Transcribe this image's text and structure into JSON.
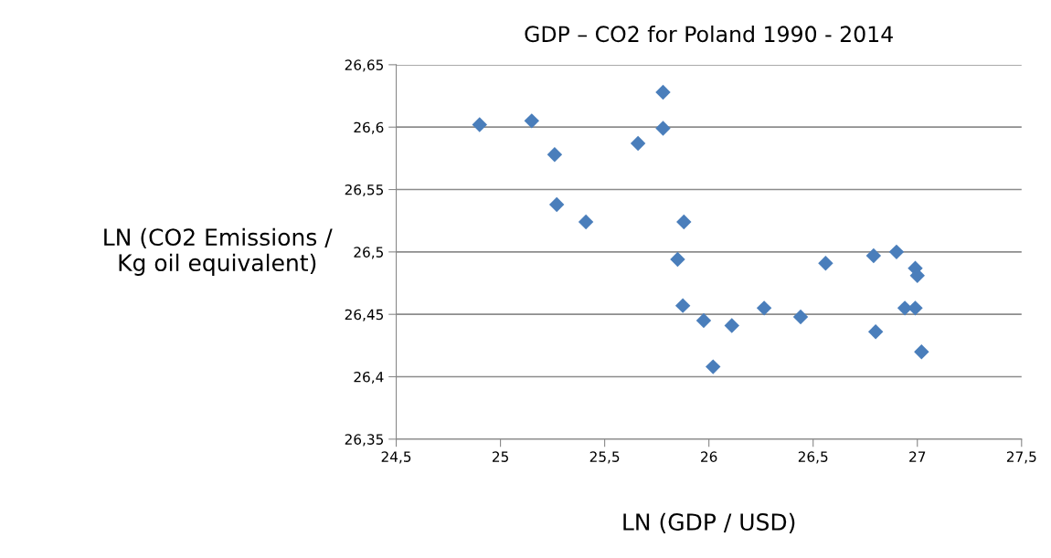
{
  "chart_data": {
    "type": "scatter",
    "title": "GDP – CO2 for Poland 1990 - 2014",
    "xlabel": "LN (GDP / USD)",
    "ylabel": "LN (CO2 Emissions /\nKg oil equivalent)",
    "series": [
      {
        "color": "#4a7ebb",
        "x": [
          24.9,
          25.15,
          25.26,
          25.27,
          25.41,
          25.66,
          25.78,
          25.78,
          25.88,
          25.85,
          26.56,
          26.79,
          26.9,
          26.99,
          27.0,
          25.875,
          25.975,
          26.02,
          26.11,
          26.265,
          26.44,
          26.8,
          26.94,
          26.99,
          27.02
        ],
        "values": [
          26.602,
          26.605,
          26.578,
          26.538,
          26.524,
          26.587,
          26.628,
          26.599,
          26.524,
          26.494,
          26.491,
          26.497,
          26.5,
          26.487,
          26.481,
          26.457,
          26.445,
          26.408,
          26.441,
          26.455,
          26.448,
          26.436,
          26.455,
          26.455,
          26.42
        ]
      }
    ],
    "xlim": [
      24.5,
      27.5
    ],
    "ylim": [
      26.35,
      26.65
    ],
    "xticks": [
      {
        "value": 24.5,
        "label": "24,5"
      },
      25,
      {
        "value": 25.5,
        "label": "25,5"
      },
      26,
      {
        "value": 26.5,
        "label": "26,5"
      },
      27,
      {
        "value": 27.5,
        "label": "27,5"
      }
    ],
    "yticks": [
      {
        "value": 26.35,
        "label": "26,35"
      },
      {
        "value": 26.4,
        "label": "26,4"
      },
      {
        "value": 26.45,
        "label": "26,45"
      },
      {
        "value": 26.5,
        "label": "26,5"
      },
      {
        "value": 26.55,
        "label": "26,55"
      },
      {
        "value": 26.6,
        "label": "26,6"
      },
      {
        "value": 26.65,
        "label": "26,65"
      }
    ],
    "grid": "y",
    "marker": "diamond"
  }
}
